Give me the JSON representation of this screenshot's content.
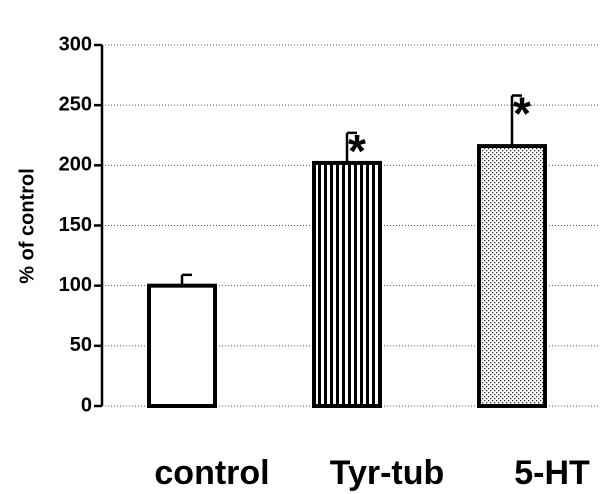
{
  "chart_data": {
    "type": "bar",
    "ylabel": "% of control",
    "xlabel": "",
    "ylim": [
      0,
      300
    ],
    "yticks": [
      0,
      50,
      100,
      150,
      200,
      250,
      300
    ],
    "grid": "horizontal dotted",
    "categories": [
      "control",
      "Tyr-tub",
      "5-HT"
    ],
    "values": [
      100,
      202,
      216
    ],
    "errors": [
      9,
      25,
      42
    ],
    "significance": [
      "",
      "*",
      "*"
    ],
    "fills": [
      "solid-white",
      "vertical-stripes",
      "dots"
    ]
  }
}
